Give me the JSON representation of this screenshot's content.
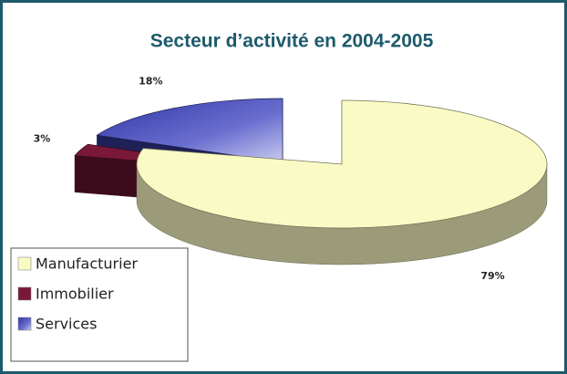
{
  "chart_data": {
    "type": "pie",
    "title": "Secteur d’activité en 2004-2005",
    "categories": [
      "Manufacturier",
      "Immobilier",
      "Services"
    ],
    "values": [
      79,
      3,
      18
    ],
    "value_labels": [
      "79%",
      "3%",
      "18%"
    ],
    "colors": [
      "#fafac4",
      "#7a1838",
      "#3c40ae"
    ],
    "legend": "bottom-left"
  }
}
